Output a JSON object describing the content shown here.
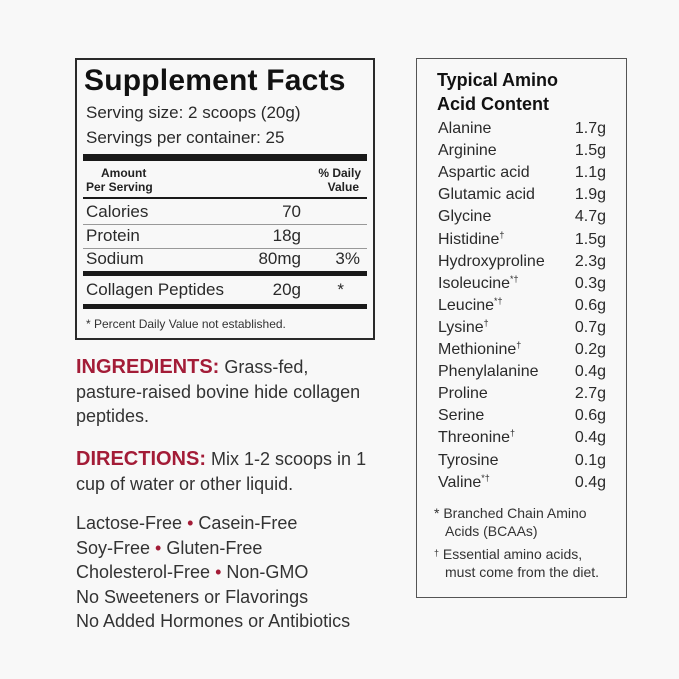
{
  "supplement_facts": {
    "title": "Supplement Facts",
    "serving_size": "Serving size: 2 scoops (20g)",
    "servings_per_container": "Servings per container: 25",
    "header_amount_1": "Amount",
    "header_amount_2": "Per Serving",
    "header_dv_1": "% Daily",
    "header_dv_2": "Value",
    "rows": [
      {
        "label": "Calories",
        "amount": "70",
        "dv": ""
      },
      {
        "label": "Protein",
        "amount": "18g",
        "dv": ""
      },
      {
        "label": "Sodium",
        "amount": "80mg",
        "dv": "3%"
      },
      {
        "label": "Collagen Peptides",
        "amount": "20g",
        "dv": "*"
      }
    ],
    "footnote": "* Percent Daily Value not established."
  },
  "ingredients": {
    "label": "INGREDIENTS:",
    "text": "Grass-fed, pasture-raised bovine hide collagen peptides."
  },
  "directions": {
    "label": "DIRECTIONS:",
    "text": "Mix 1-2 scoops in 1 cup of water or other liquid."
  },
  "claims": {
    "line1": [
      "Lactose-Free",
      "Casein-Free"
    ],
    "line2": [
      "Soy-Free",
      "Gluten-Free"
    ],
    "line3": [
      "Cholesterol-Free",
      "Non-GMO"
    ],
    "line4": "No Sweeteners or Flavorings",
    "line5": "No Added Hormones or Antibiotics",
    "bullet": "•"
  },
  "amino": {
    "title_1": "Typical Amino",
    "title_2": "Acid Content",
    "rows": [
      {
        "name": "Alanine",
        "mark": "",
        "value": "1.7g"
      },
      {
        "name": "Arginine",
        "mark": "",
        "value": "1.5g"
      },
      {
        "name": "Aspartic acid",
        "mark": "",
        "value": "1.1g"
      },
      {
        "name": "Glutamic acid",
        "mark": "",
        "value": "1.9g"
      },
      {
        "name": "Glycine",
        "mark": "",
        "value": "4.7g"
      },
      {
        "name": "Histidine",
        "mark": "†",
        "value": "1.5g"
      },
      {
        "name": "Hydroxyproline",
        "mark": "",
        "value": "2.3g"
      },
      {
        "name": "Isoleucine",
        "mark": "*†",
        "value": "0.3g"
      },
      {
        "name": "Leucine",
        "mark": "*†",
        "value": "0.6g"
      },
      {
        "name": "Lysine",
        "mark": "†",
        "value": "0.7g"
      },
      {
        "name": "Methionine",
        "mark": "†",
        "value": "0.2g"
      },
      {
        "name": "Phenylalanine",
        "mark": "",
        "value": "0.4g"
      },
      {
        "name": "Proline",
        "mark": "",
        "value": "2.7g"
      },
      {
        "name": "Serine",
        "mark": "",
        "value": "0.6g"
      },
      {
        "name": "Threonine",
        "mark": "†",
        "value": "0.4g"
      },
      {
        "name": "Tyrosine",
        "mark": "",
        "value": "0.1g"
      },
      {
        "name": "Valine",
        "mark": "*†",
        "value": "0.4g"
      }
    ],
    "footnote_bcaa_1": "* Branched Chain Amino",
    "footnote_bcaa_2": "Acids (BCAAs)",
    "footnote_essential_1": "Essential amino acids,",
    "footnote_essential_2": "must come from the diet.",
    "dagger": "†"
  },
  "colors": {
    "accent_red": "#a31c37",
    "text": "#2a2a2a",
    "background": "#f8f8f8"
  }
}
